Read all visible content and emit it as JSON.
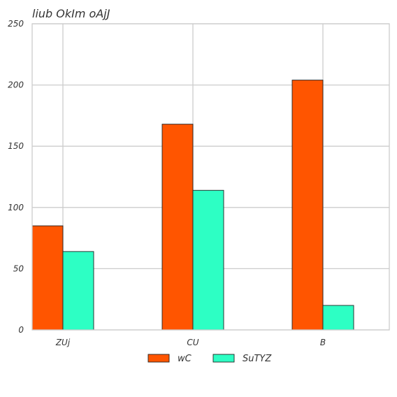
{
  "chart_data": {
    "type": "bar",
    "title": "liub OkIm oAjJ",
    "xlabel": "",
    "ylabel": "",
    "categories": [
      "ZUj",
      "CU",
      "B"
    ],
    "series": [
      {
        "name": "wC",
        "values": [
          85,
          168,
          204
        ],
        "color": "#ff5500"
      },
      {
        "name": "SuTYZ",
        "values": [
          64,
          114,
          20
        ],
        "color": "#2dffc4"
      }
    ],
    "ylim": [
      0,
      250
    ],
    "yticks": [
      0,
      50,
      100,
      150,
      200,
      250
    ],
    "grid": true,
    "legend_position": "bottom-center"
  }
}
